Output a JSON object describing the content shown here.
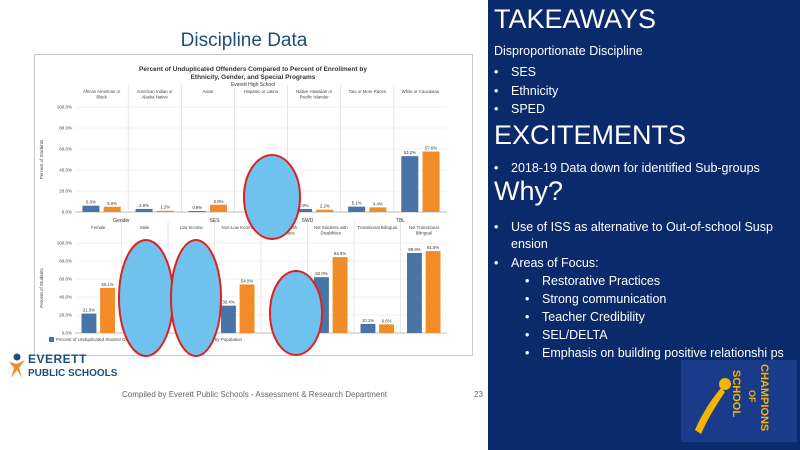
{
  "slide_title": "Discipline Data",
  "logo": {
    "line1": "EVERETT",
    "line2": "PUBLIC SCHOOLS"
  },
  "footer": "Compiled by Everett Public Schools - Assessment & Research Department",
  "page_number": "23",
  "panel": {
    "takeaways_heading": "TAKEAWAYS",
    "takeaways_sub": "Disproportionate Discipline",
    "takeaways_items": [
      "SES",
      "Ethnicity",
      "SPED"
    ],
    "excitements_heading": "EXCITEMENTS",
    "excitements_items": [
      "2018-19 Data down for identified Sub-groups"
    ],
    "why_heading": "Why?",
    "why_items": [
      "Use of ISS as alternative to  Out-of-school Susp ension",
      "Areas of Focus:"
    ],
    "focus_items": [
      "Restorative Practices",
      "Strong communication",
      "Teacher Credibility",
      "SEL/DELTA",
      "Emphasis on building positive relationshi ps"
    ],
    "badge_text": [
      "SCHOOL",
      "OF",
      "CHAMPIONS"
    ]
  },
  "colors": {
    "offenders": "#4a74a6",
    "enrollment": "#f28c28",
    "panel": "#0a2a6b",
    "highlight_fill": "#6fc2ee",
    "highlight_stroke": "#e02020"
  },
  "chart_data": [
    {
      "type": "bar",
      "title": "Percent of Unduplicated Offenders Compared to Percent of Enrollment by",
      "subtitle": "Ethnicity, Gender, and Special Programs",
      "subtitle2": "Everett High School",
      "ylabel": "Percent of Students",
      "ylim": [
        0,
        100
      ],
      "yticks": [
        "0.0%",
        "20.0%",
        "40.0%",
        "60.0%",
        "80.0%",
        "100.0%"
      ],
      "categories": [
        "African American or Black",
        "American Indian or Alaska Native",
        "Asian",
        "Hispanic or Latino",
        "Native Hawaiian or Pacific Islander",
        "Two or More Races",
        "White or Caucasian"
      ],
      "series": [
        {
          "name": "Percent of Unduplicated Student Offenders",
          "values": [
            6.0,
            2.9,
            0.9,
            null,
            2.9,
            5.1,
            53.2
          ],
          "labels": [
            "6.0%",
            "2.9%",
            "0.9%",
            "",
            "2.9%",
            "5.1%",
            "53.2%"
          ]
        },
        {
          "name": "Enrollment by Population",
          "values": [
            5.0,
            1.2,
            6.9,
            null,
            2.2,
            4.4,
            57.6
          ],
          "labels": [
            "5.0%",
            "1.2%",
            "6.9%",
            "",
            "2.2%",
            "4.4%",
            "57.6%"
          ]
        }
      ]
    },
    {
      "type": "bar",
      "ylim": [
        0,
        100
      ],
      "yticks": [
        "0.0%",
        "20.0%",
        "40.0%",
        "60.0%",
        "80.0%",
        "100.0%"
      ],
      "ylabel": "Percent of Students",
      "groups": [
        "Gender",
        "SES",
        "SWD",
        "TBL"
      ],
      "categories": [
        "Female",
        "Male",
        "Low Income",
        "Non-Low Income",
        "Students with Disabilities",
        "Not Students with Disabilities",
        "Transitional Bilingual",
        "Not Transitional Bilingual"
      ],
      "series": [
        {
          "name": "Percent of Unduplicated Student Offenders",
          "values": [
            21.6,
            null,
            null,
            30.4,
            null,
            62.0,
            10.1,
            88.9
          ],
          "labels": [
            "21.6%",
            "",
            "",
            "30.4%",
            "",
            "62.0%",
            "10.1%",
            "88.9%"
          ]
        },
        {
          "name": "Enrollment by Population",
          "values": [
            50.1,
            null,
            null,
            54.0,
            null,
            84.3,
            9.6,
            91.0
          ],
          "labels": [
            "50.1%",
            "",
            "",
            "54.0%",
            "",
            "84.3%",
            "9.6%",
            "91.0%"
          ]
        }
      ],
      "legend": [
        "Percent of Unduplicated Student Offenders",
        "Enrollment by Population"
      ]
    }
  ]
}
